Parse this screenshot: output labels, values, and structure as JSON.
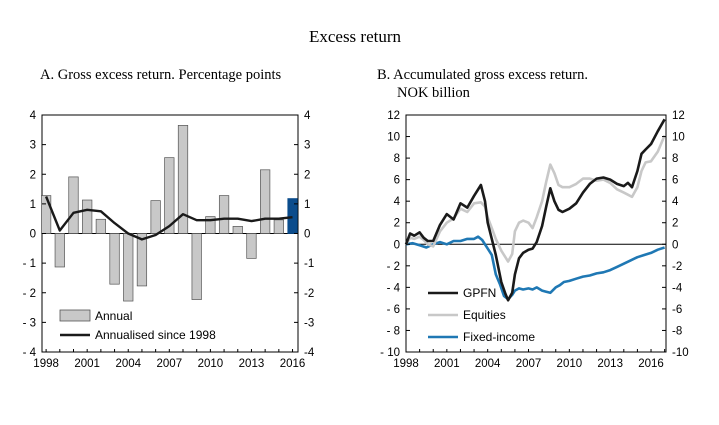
{
  "page": {
    "title": "Excess return"
  },
  "chart_data": [
    {
      "type": "bar",
      "title": "A. Gross excess return. Percentage points",
      "x_ticks": [
        "1998",
        "2001",
        "2004",
        "2007",
        "2010",
        "2013",
        "2016"
      ],
      "ylim": [
        -4,
        4
      ],
      "y_ticks": [
        "4",
        "3",
        "2",
        "1",
        "0",
        "- 1",
        "- 2",
        "- 3",
        "- 4"
      ],
      "right_y_ticks": [
        "4",
        "3",
        "2",
        "1",
        "0",
        "-1",
        "-2",
        "-3",
        "-4"
      ],
      "categories": [
        1998,
        1999,
        2000,
        2001,
        2002,
        2003,
        2004,
        2005,
        2006,
        2007,
        2008,
        2009,
        2010,
        2011,
        2012,
        2013,
        2014,
        2015,
        2016
      ],
      "series": [
        {
          "name": "Annual",
          "kind": "bar",
          "values": [
            1.28,
            -1.13,
            1.91,
            1.13,
            0.48,
            -1.71,
            -2.28,
            -1.77,
            1.11,
            2.56,
            3.65,
            -2.23,
            0.57,
            1.28,
            0.24,
            -0.84,
            2.15,
            0.46,
            1.18
          ],
          "highlight_last": true,
          "color": "#c8c8c8",
          "highlight_color": "#0b4c8c"
        },
        {
          "name": "Annualised since 1998",
          "kind": "line",
          "values": [
            1.25,
            0.1,
            0.7,
            0.8,
            0.75,
            0.35,
            0.0,
            -0.2,
            -0.05,
            0.25,
            0.65,
            0.45,
            0.45,
            0.5,
            0.5,
            0.42,
            0.5,
            0.5,
            0.55
          ],
          "color": "#1a1a1a"
        }
      ],
      "legend": "bottom-left",
      "grid": false
    },
    {
      "type": "line",
      "title_lines": [
        "B. Accumulated gross excess return.",
        "NOK billion"
      ],
      "x_ticks": [
        "1998",
        "2001",
        "2004",
        "2007",
        "2010",
        "2013",
        "2016"
      ],
      "xlim": [
        1998,
        2017.1
      ],
      "ylim": [
        -10,
        12
      ],
      "y_ticks": [
        "12",
        "10",
        "8",
        "6",
        "4",
        "2",
        "0",
        "- 2",
        "- 4",
        "- 6",
        "- 8",
        "- 10"
      ],
      "right_y_ticks": [
        "12",
        "10",
        "8",
        "6",
        "4",
        "2",
        "0",
        "-2",
        "-4",
        "-6",
        "-8",
        "-10"
      ],
      "series": [
        {
          "name": "GPFN",
          "color": "#1a1a1a",
          "x": [
            1998.0,
            1998.3,
            1998.6,
            1999.0,
            1999.3,
            1999.6,
            2000.0,
            2000.5,
            2001.0,
            2001.5,
            2002.0,
            2002.5,
            2003.0,
            2003.5,
            2003.8,
            2004.0,
            2004.3,
            2004.6,
            2005.0,
            2005.3,
            2005.5,
            2005.8,
            2006.0,
            2006.3,
            2006.6,
            2007.0,
            2007.3,
            2007.6,
            2008.0,
            2008.3,
            2008.6,
            2008.9,
            2009.2,
            2009.5,
            2010.0,
            2010.5,
            2011.0,
            2011.5,
            2012.0,
            2012.5,
            2013.0,
            2013.5,
            2014.0,
            2014.3,
            2014.6,
            2015.0,
            2015.3,
            2015.6,
            2016.0,
            2016.5,
            2017.0
          ],
          "y": [
            0.0,
            1.0,
            0.8,
            1.1,
            0.6,
            0.3,
            0.3,
            1.8,
            2.8,
            2.3,
            3.8,
            3.4,
            4.5,
            5.5,
            4.0,
            2.0,
            0.5,
            -1.0,
            -3.5,
            -4.6,
            -5.2,
            -4.5,
            -2.8,
            -1.3,
            -0.8,
            -0.5,
            -0.4,
            0.2,
            1.7,
            3.5,
            5.2,
            4.0,
            3.2,
            3.0,
            3.3,
            3.8,
            4.8,
            5.6,
            6.1,
            6.2,
            6.0,
            5.6,
            5.4,
            5.7,
            5.3,
            6.8,
            8.4,
            8.8,
            9.3,
            10.5,
            11.6
          ]
        },
        {
          "name": "Equities",
          "color": "#c8c8c8",
          "x": [
            1998.0,
            1998.3,
            1998.6,
            1999.0,
            1999.3,
            1999.6,
            2000.0,
            2000.5,
            2001.0,
            2001.5,
            2002.0,
            2002.5,
            2003.0,
            2003.5,
            2003.8,
            2004.0,
            2004.3,
            2004.6,
            2005.0,
            2005.3,
            2005.5,
            2005.8,
            2006.0,
            2006.3,
            2006.6,
            2007.0,
            2007.3,
            2007.6,
            2008.0,
            2008.3,
            2008.6,
            2008.9,
            2009.2,
            2009.5,
            2010.0,
            2010.5,
            2011.0,
            2011.5,
            2012.0,
            2012.5,
            2013.0,
            2013.5,
            2014.0,
            2014.3,
            2014.6,
            2015.0,
            2015.3,
            2015.6,
            2016.0,
            2016.5,
            2017.0
          ],
          "y": [
            0.0,
            0.6,
            0.5,
            0.7,
            0.4,
            0.0,
            -0.2,
            1.2,
            2.0,
            2.4,
            3.3,
            3.0,
            3.8,
            3.9,
            3.5,
            2.5,
            1.5,
            0.5,
            -0.6,
            -1.2,
            -1.6,
            -0.9,
            1.2,
            2.0,
            2.2,
            2.0,
            1.5,
            2.5,
            4.0,
            5.8,
            7.4,
            6.6,
            5.5,
            5.3,
            5.3,
            5.6,
            6.1,
            6.1,
            5.9,
            6.0,
            5.7,
            5.1,
            4.8,
            4.6,
            4.4,
            5.3,
            6.8,
            7.6,
            7.7,
            8.6,
            10.1
          ]
        },
        {
          "name": "Fixed-income",
          "color": "#1f78b4",
          "x": [
            1998.0,
            1998.5,
            1999.0,
            1999.5,
            2000.0,
            2000.5,
            2001.0,
            2001.5,
            2002.0,
            2002.5,
            2003.0,
            2003.3,
            2003.6,
            2004.0,
            2004.3,
            2004.6,
            2004.9,
            2005.2,
            2005.5,
            2005.8,
            2006.0,
            2006.3,
            2006.6,
            2007.0,
            2007.3,
            2007.6,
            2008.0,
            2008.3,
            2008.6,
            2009.0,
            2009.3,
            2009.6,
            2010.0,
            2010.5,
            2011.0,
            2011.5,
            2012.0,
            2012.5,
            2013.0,
            2013.5,
            2014.0,
            2014.5,
            2015.0,
            2015.5,
            2016.0,
            2016.5,
            2017.0
          ],
          "y": [
            0.0,
            0.1,
            -0.1,
            -0.3,
            0.0,
            0.2,
            0.0,
            0.3,
            0.3,
            0.5,
            0.5,
            0.7,
            0.4,
            -0.4,
            -1.0,
            -2.8,
            -3.7,
            -4.8,
            -5.1,
            -4.7,
            -4.3,
            -4.1,
            -4.2,
            -4.1,
            -4.2,
            -4.0,
            -4.3,
            -4.4,
            -4.5,
            -4.0,
            -3.8,
            -3.5,
            -3.4,
            -3.2,
            -3.0,
            -2.9,
            -2.7,
            -2.6,
            -2.4,
            -2.1,
            -1.8,
            -1.5,
            -1.2,
            -1.0,
            -0.8,
            -0.5,
            -0.3
          ]
        }
      ],
      "legend": "lower-center",
      "grid": false
    }
  ]
}
